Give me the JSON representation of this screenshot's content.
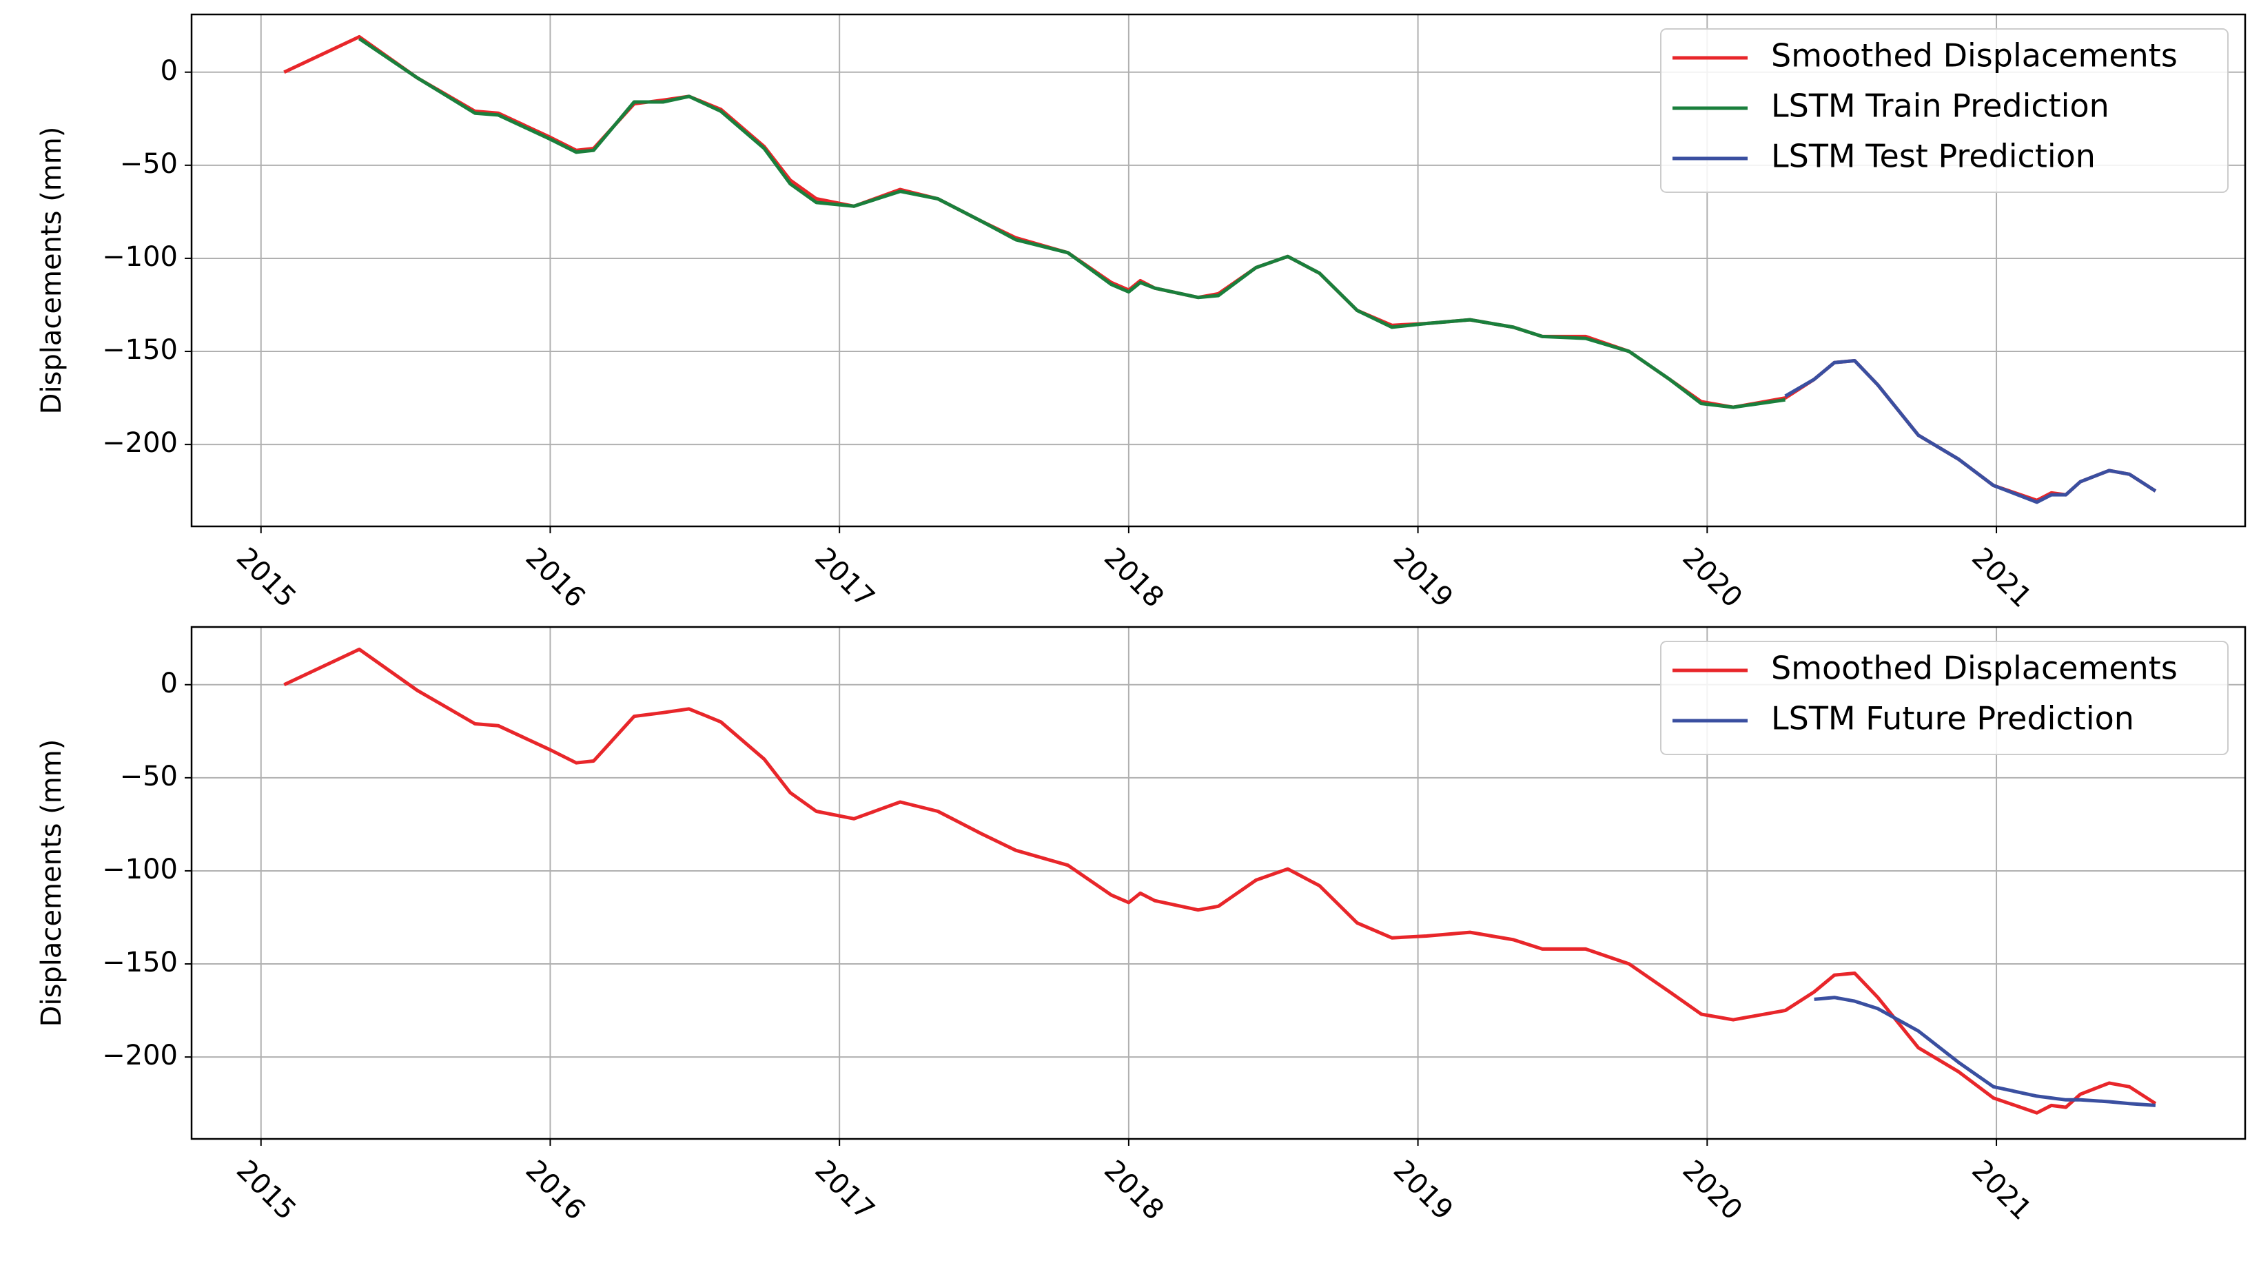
{
  "chart_data": [
    {
      "type": "line",
      "ylabel": "Displacements (mm)",
      "legend": "upper right",
      "grid": true,
      "x": [
        2015.08,
        2015.34,
        2015.54,
        2015.74,
        2015.82,
        2016.0,
        2016.09,
        2016.15,
        2016.29,
        2016.39,
        2016.48,
        2016.59,
        2016.74,
        2016.83,
        2016.92,
        2017.05,
        2017.21,
        2017.34,
        2017.49,
        2017.61,
        2017.79,
        2017.94,
        2018.0,
        2018.04,
        2018.09,
        2018.24,
        2018.31,
        2018.44,
        2018.55,
        2018.66,
        2018.79,
        2018.91,
        2019.03,
        2019.18,
        2019.33,
        2019.43,
        2019.58,
        2019.73,
        2019.87,
        2019.98,
        2020.09,
        2020.27,
        2020.37,
        2020.44,
        2020.51,
        2020.59,
        2020.73,
        2020.87,
        2020.99,
        2021.14,
        2021.19,
        2021.24,
        2021.29,
        2021.39,
        2021.46,
        2021.55
      ],
      "series": [
        {
          "name": "Smoothed Displacements",
          "color": "#e8262a",
          "values": [
            0,
            19,
            -3,
            -21,
            -22,
            -35,
            -42,
            -41,
            -17,
            -15,
            -13,
            -20,
            -40,
            -58,
            -68,
            -72,
            -63,
            -68,
            -80,
            -89,
            -97,
            -113,
            -117,
            -112,
            -116,
            -121,
            -119,
            -105,
            -99,
            -108,
            -128,
            -136,
            -135,
            -133,
            -137,
            -142,
            -142,
            -150,
            -165,
            -177,
            -180,
            -175,
            -165,
            -156,
            -155,
            -168,
            -195,
            -208,
            -222,
            -230,
            -226,
            -227,
            -220,
            -214,
            -216,
            -225
          ]
        },
        {
          "name": "LSTM Train Prediction",
          "color": "#1a7f3c",
          "values": [
            null,
            18,
            -3,
            -22,
            -23,
            -36,
            -43,
            -42,
            -16,
            -16,
            -13,
            -21,
            -41,
            -60,
            -70,
            -72,
            -64,
            -68,
            -80,
            -90,
            -97,
            -114,
            -118,
            -113,
            -116,
            -121,
            -120,
            -105,
            -99,
            -108,
            -128,
            -137,
            -135,
            -133,
            -137,
            -142,
            -143,
            -150,
            -165,
            -178,
            -180,
            -176,
            null,
            null,
            null,
            null,
            null,
            null,
            null,
            null,
            null,
            null,
            null,
            null,
            null,
            null
          ]
        },
        {
          "name": "LSTM Test Prediction",
          "color": "#3a4fa0",
          "values": [
            null,
            null,
            null,
            null,
            null,
            null,
            null,
            null,
            null,
            null,
            null,
            null,
            null,
            null,
            null,
            null,
            null,
            null,
            null,
            null,
            null,
            null,
            null,
            null,
            null,
            null,
            null,
            null,
            null,
            null,
            null,
            null,
            null,
            null,
            null,
            null,
            null,
            null,
            null,
            null,
            null,
            -174,
            -165,
            -156,
            -155,
            -168,
            -195,
            -208,
            -222,
            -231,
            -227,
            -227,
            -220,
            -214,
            -216,
            -225
          ]
        }
      ],
      "xlim": [
        2014.76,
        2021.86
      ],
      "xticks": [
        2015,
        2016,
        2017,
        2018,
        2019,
        2020,
        2021
      ],
      "ylim": [
        -244,
        31
      ],
      "yticks": [
        {
          "value": -200,
          "label": "−200"
        },
        {
          "value": -150,
          "label": "−150"
        },
        {
          "value": -100,
          "label": "−100"
        },
        {
          "value": -50,
          "label": "−50"
        },
        0
      ]
    },
    {
      "type": "line",
      "ylabel": "Displacements (mm)",
      "legend": "upper right",
      "grid": true,
      "x": [
        2015.08,
        2015.34,
        2015.54,
        2015.74,
        2015.82,
        2016.0,
        2016.09,
        2016.15,
        2016.29,
        2016.39,
        2016.48,
        2016.59,
        2016.74,
        2016.83,
        2016.92,
        2017.05,
        2017.21,
        2017.34,
        2017.49,
        2017.61,
        2017.79,
        2017.94,
        2018.0,
        2018.04,
        2018.09,
        2018.24,
        2018.31,
        2018.44,
        2018.55,
        2018.66,
        2018.79,
        2018.91,
        2019.03,
        2019.18,
        2019.33,
        2019.43,
        2019.58,
        2019.73,
        2019.87,
        2019.98,
        2020.09,
        2020.27,
        2020.37,
        2020.44,
        2020.51,
        2020.59,
        2020.73,
        2020.87,
        2020.99,
        2021.14,
        2021.19,
        2021.24,
        2021.29,
        2021.39,
        2021.46,
        2021.55
      ],
      "series": [
        {
          "name": "Smoothed Displacements",
          "color": "#e8262a",
          "values": [
            0,
            19,
            -3,
            -21,
            -22,
            -35,
            -42,
            -41,
            -17,
            -15,
            -13,
            -20,
            -40,
            -58,
            -68,
            -72,
            -63,
            -68,
            -80,
            -89,
            -97,
            -113,
            -117,
            -112,
            -116,
            -121,
            -119,
            -105,
            -99,
            -108,
            -128,
            -136,
            -135,
            -133,
            -137,
            -142,
            -142,
            -150,
            -165,
            -177,
            -180,
            -175,
            -165,
            -156,
            -155,
            -168,
            -195,
            -208,
            -222,
            -230,
            -226,
            -227,
            -220,
            -214,
            -216,
            -225
          ]
        },
        {
          "name": "LSTM Future Prediction",
          "color": "#3a4fa0",
          "values": [
            null,
            null,
            null,
            null,
            null,
            null,
            null,
            null,
            null,
            null,
            null,
            null,
            null,
            null,
            null,
            null,
            null,
            null,
            null,
            null,
            null,
            null,
            null,
            null,
            null,
            null,
            null,
            null,
            null,
            null,
            null,
            null,
            null,
            null,
            null,
            null,
            null,
            null,
            null,
            null,
            null,
            null,
            -169,
            -168,
            -170,
            -174,
            -186,
            -203,
            -216,
            -221,
            -222,
            -223,
            -223,
            -224,
            -225,
            -226
          ]
        }
      ],
      "xlim": [
        2014.76,
        2021.86
      ],
      "xticks": [
        2015,
        2016,
        2017,
        2018,
        2019,
        2020,
        2021
      ],
      "ylim": [
        -244,
        31
      ],
      "yticks": [
        {
          "value": -200,
          "label": "−200"
        },
        {
          "value": -150,
          "label": "−150"
        },
        {
          "value": -100,
          "label": "−100"
        },
        {
          "value": -50,
          "label": "−50"
        },
        0
      ]
    }
  ]
}
